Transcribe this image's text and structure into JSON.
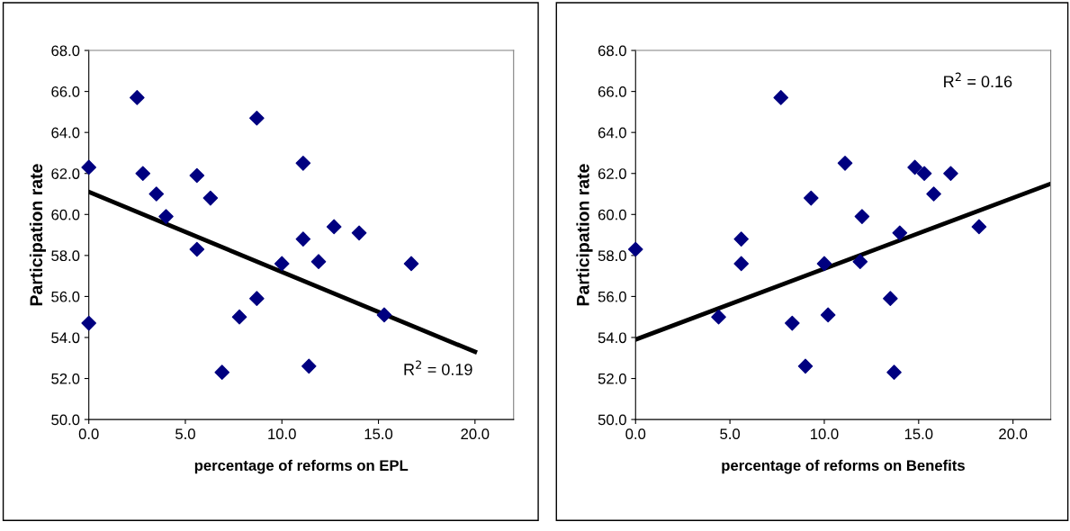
{
  "chart_data": [
    {
      "type": "scatter",
      "xlabel": "percentage of reforms on EPL",
      "ylabel": "Participation rate",
      "xlim": [
        0,
        22
      ],
      "xticks": [
        {
          "value": 0,
          "label": "0.0"
        },
        {
          "value": 5,
          "label": "5.0"
        },
        {
          "value": 10,
          "label": "10.0"
        },
        {
          "value": 15,
          "label": "15.0"
        },
        {
          "value": 20,
          "label": "20.0"
        }
      ],
      "ylim": [
        50,
        68
      ],
      "yticks": [
        {
          "value": 50,
          "label": "50.0"
        },
        {
          "value": 52,
          "label": "52.0"
        },
        {
          "value": 54,
          "label": "54.0"
        },
        {
          "value": 56,
          "label": "56.0"
        },
        {
          "value": 58,
          "label": "58.0"
        },
        {
          "value": 60,
          "label": "60.0"
        },
        {
          "value": 62,
          "label": "62.0"
        },
        {
          "value": 64,
          "label": "64.0"
        },
        {
          "value": 66,
          "label": "66.0"
        },
        {
          "value": 68,
          "label": "68.0"
        }
      ],
      "grid": false,
      "legend": false,
      "annotations": [
        "R$^{2}$ = 0.19"
      ],
      "series": [
        {
          "marker": "diamond",
          "color": "#000080",
          "x": [
            0,
            0,
            2.5,
            2.8,
            3.5,
            4.0,
            5.6,
            5.6,
            6.3,
            6.9,
            7.8,
            8.7,
            8.7,
            10.0,
            11.1,
            11.1,
            11.4,
            11.9,
            12.7,
            14.0,
            15.3,
            16.7
          ],
          "values": [
            62.3,
            54.7,
            65.7,
            62.0,
            61.0,
            59.9,
            61.9,
            58.3,
            60.8,
            52.3,
            55.0,
            64.7,
            55.9,
            57.6,
            62.5,
            58.8,
            52.6,
            57.7,
            59.4,
            59.1,
            55.1,
            57.6
          ]
        },
        {
          "type": "line",
          "marker": "none",
          "color": "#000000",
          "x": [
            0,
            20
          ],
          "values": [
            61.1,
            53.3
          ]
        }
      ]
    },
    {
      "type": "scatter",
      "xlabel": "percentage of reforms on Benefits",
      "ylabel": "Participation rate",
      "xlim": [
        0,
        22
      ],
      "xticks": [
        {
          "value": 0,
          "label": "0.0"
        },
        {
          "value": 5,
          "label": "5.0"
        },
        {
          "value": 10,
          "label": "10.0"
        },
        {
          "value": 15,
          "label": "15.0"
        },
        {
          "value": 20,
          "label": "20.0"
        }
      ],
      "ylim": [
        50,
        68
      ],
      "yticks": [
        {
          "value": 50,
          "label": "50.0"
        },
        {
          "value": 52,
          "label": "52.0"
        },
        {
          "value": 54,
          "label": "54.0"
        },
        {
          "value": 56,
          "label": "56.0"
        },
        {
          "value": 58,
          "label": "58.0"
        },
        {
          "value": 60,
          "label": "60.0"
        },
        {
          "value": 62,
          "label": "62.0"
        },
        {
          "value": 64,
          "label": "64.0"
        },
        {
          "value": 66,
          "label": "66.0"
        },
        {
          "value": 68,
          "label": "68.0"
        }
      ],
      "grid": false,
      "legend": false,
      "annotations": [
        "R$^{2}$ = 0.16"
      ],
      "series": [
        {
          "marker": "diamond",
          "color": "#000080",
          "x": [
            0,
            4.4,
            5.6,
            5.6,
            7.7,
            8.3,
            9.0,
            9.3,
            10.0,
            10.2,
            11.1,
            11.9,
            12.0,
            13.5,
            13.7,
            14.0,
            14.8,
            15.3,
            15.8,
            16.7,
            18.2
          ],
          "values": [
            58.3,
            55.0,
            58.8,
            57.6,
            65.7,
            54.7,
            52.6,
            60.8,
            57.6,
            55.1,
            62.5,
            57.7,
            59.9,
            55.9,
            52.3,
            59.1,
            62.3,
            62.0,
            61.0,
            62.0,
            59.4
          ]
        },
        {
          "type": "line",
          "marker": "none",
          "color": "#000000",
          "x": [
            0,
            22
          ],
          "values": [
            53.9,
            61.5
          ]
        }
      ]
    }
  ]
}
